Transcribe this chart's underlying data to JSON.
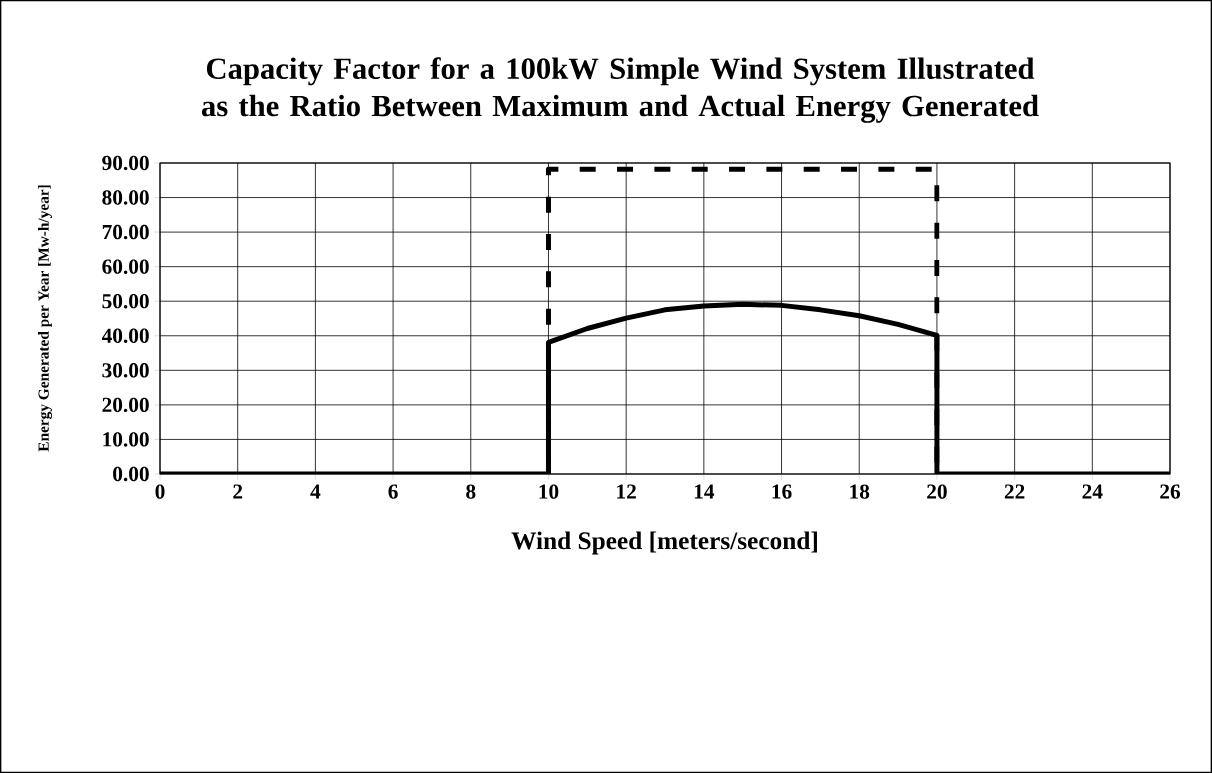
{
  "chart_data": {
    "type": "line",
    "title": "Capacity Factor for a 100kW Simple Wind System Illustrated as the Ratio Between Maximum and Actual Energy Generated",
    "xlabel": "Wind Speed [meters/second]",
    "ylabel": "Energy Generated per Year [Mw-h/year]",
    "series": [
      {
        "color": "#000000",
        "line_style": "dashed",
        "x": [
          10,
          10,
          20,
          20
        ],
        "values": [
          0,
          88.2,
          88.2,
          0
        ]
      },
      {
        "color": "#000000",
        "line_style": "solid",
        "x": [
          0,
          10,
          10,
          11,
          12,
          13,
          14,
          15,
          16,
          17,
          18,
          19,
          20,
          20,
          26
        ],
        "values": [
          0,
          0,
          38.1,
          42.1,
          45.1,
          47.5,
          48.6,
          49.1,
          48.8,
          47.5,
          45.8,
          43.3,
          40.1,
          0,
          0
        ]
      }
    ],
    "xlim": [
      0,
      26
    ],
    "xticks": [
      0,
      2,
      4,
      6,
      8,
      10,
      12,
      14,
      16,
      18,
      20,
      22,
      24,
      26
    ],
    "ylim": [
      0,
      90
    ],
    "yticks": [
      {
        "value": 0,
        "label": "0.00"
      },
      {
        "value": 10,
        "label": "10.00"
      },
      {
        "value": 20,
        "label": "20.00"
      },
      {
        "value": 30,
        "label": "30.00"
      },
      {
        "value": 40,
        "label": "40.00"
      },
      {
        "value": 50,
        "label": "50.00"
      },
      {
        "value": 60,
        "label": "60.00"
      },
      {
        "value": 70,
        "label": "70.00"
      },
      {
        "value": 80,
        "label": "80.00"
      },
      {
        "value": 90,
        "label": "90.00"
      }
    ],
    "grid": true,
    "marker": "none"
  }
}
